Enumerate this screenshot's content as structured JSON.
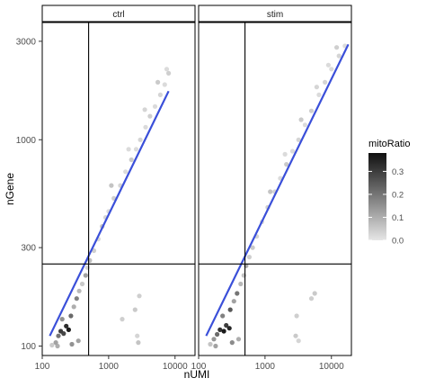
{
  "chart_data": {
    "type": "scatter",
    "facets": [
      "ctrl",
      "stim"
    ],
    "xlabel": "nUMI",
    "ylabel": "nGene",
    "x_scale": "log10",
    "y_scale": "log10",
    "xlim": [
      100,
      20000
    ],
    "ylim": [
      90,
      3700
    ],
    "x_ticks": [
      100,
      1000,
      10000
    ],
    "x_tick_labels": [
      "100",
      "1000",
      "10000"
    ],
    "y_ticks": [
      100,
      300,
      1000,
      3000
    ],
    "y_tick_labels": [
      "100",
      "300",
      "1000",
      "3000"
    ],
    "grid": false,
    "reference_lines": {
      "x": 500,
      "y": 250
    },
    "color_by": "mitoRatio",
    "legend": {
      "title": "mitoRatio",
      "position": "right",
      "range": [
        0.0,
        0.38
      ],
      "ticks": [
        0.0,
        0.1,
        0.2,
        0.3
      ],
      "tick_labels": [
        "0.0",
        "0.1",
        "0.2",
        "0.3"
      ],
      "low_color": "#e6e6e6",
      "high_color": "#101010"
    },
    "series": [
      {
        "facet": "ctrl",
        "fit_line": {
          "x": [
            130,
            8000
          ],
          "y": [
            112,
            1720
          ]
        },
        "points": [
          {
            "x": 140,
            "y": 101,
            "mito": 0.05
          },
          {
            "x": 160,
            "y": 104,
            "mito": 0.12
          },
          {
            "x": 175,
            "y": 112,
            "mito": 0.2
          },
          {
            "x": 190,
            "y": 118,
            "mito": 0.3
          },
          {
            "x": 210,
            "y": 115,
            "mito": 0.28
          },
          {
            "x": 230,
            "y": 125,
            "mito": 0.33
          },
          {
            "x": 250,
            "y": 120,
            "mito": 0.36
          },
          {
            "x": 200,
            "y": 135,
            "mito": 0.15
          },
          {
            "x": 270,
            "y": 140,
            "mito": 0.22
          },
          {
            "x": 300,
            "y": 155,
            "mito": 0.1
          },
          {
            "x": 330,
            "y": 170,
            "mito": 0.18
          },
          {
            "x": 360,
            "y": 185,
            "mito": 0.08
          },
          {
            "x": 400,
            "y": 200,
            "mito": 0.05
          },
          {
            "x": 450,
            "y": 220,
            "mito": 0.12
          },
          {
            "x": 480,
            "y": 240,
            "mito": 0.03
          },
          {
            "x": 520,
            "y": 260,
            "mito": 0.07
          },
          {
            "x": 600,
            "y": 290,
            "mito": 0.04
          },
          {
            "x": 700,
            "y": 330,
            "mito": 0.02
          },
          {
            "x": 800,
            "y": 380,
            "mito": 0.06
          },
          {
            "x": 900,
            "y": 420,
            "mito": 0.03
          },
          {
            "x": 1000,
            "y": 450,
            "mito": 0.02
          },
          {
            "x": 1200,
            "y": 520,
            "mito": 0.04
          },
          {
            "x": 1500,
            "y": 600,
            "mito": 0.03
          },
          {
            "x": 1800,
            "y": 700,
            "mito": 0.02
          },
          {
            "x": 2200,
            "y": 800,
            "mito": 0.05
          },
          {
            "x": 2600,
            "y": 900,
            "mito": 0.02
          },
          {
            "x": 3000,
            "y": 1000,
            "mito": 0.03
          },
          {
            "x": 3600,
            "y": 1150,
            "mito": 0.02
          },
          {
            "x": 4200,
            "y": 1300,
            "mito": 0.04
          },
          {
            "x": 5000,
            "y": 1450,
            "mito": 0.02
          },
          {
            "x": 6000,
            "y": 1650,
            "mito": 0.03
          },
          {
            "x": 7000,
            "y": 1850,
            "mito": 0.02
          },
          {
            "x": 8000,
            "y": 2100,
            "mito": 0.04
          },
          {
            "x": 7500,
            "y": 2200,
            "mito": 0.02
          },
          {
            "x": 5500,
            "y": 1900,
            "mito": 0.05
          },
          {
            "x": 3500,
            "y": 1400,
            "mito": 0.03
          },
          {
            "x": 2000,
            "y": 900,
            "mito": 0.02
          },
          {
            "x": 1100,
            "y": 600,
            "mito": 0.06
          },
          {
            "x": 2500,
            "y": 150,
            "mito": 0.05
          },
          {
            "x": 2900,
            "y": 175,
            "mito": 0.04
          },
          {
            "x": 2700,
            "y": 112,
            "mito": 0.03
          },
          {
            "x": 2800,
            "y": 104,
            "mito": 0.06
          },
          {
            "x": 1600,
            "y": 135,
            "mito": 0.04
          },
          {
            "x": 170,
            "y": 100,
            "mito": 0.1
          },
          {
            "x": 280,
            "y": 102,
            "mito": 0.15
          },
          {
            "x": 350,
            "y": 106,
            "mito": 0.12
          }
        ]
      },
      {
        "facet": "stim",
        "fit_line": {
          "x": [
            130,
            18000
          ],
          "y": [
            112,
            2900
          ]
        },
        "points": [
          {
            "x": 150,
            "y": 102,
            "mito": 0.06
          },
          {
            "x": 170,
            "y": 108,
            "mito": 0.14
          },
          {
            "x": 190,
            "y": 114,
            "mito": 0.22
          },
          {
            "x": 210,
            "y": 120,
            "mito": 0.32
          },
          {
            "x": 240,
            "y": 118,
            "mito": 0.36
          },
          {
            "x": 260,
            "y": 126,
            "mito": 0.3
          },
          {
            "x": 290,
            "y": 122,
            "mito": 0.34
          },
          {
            "x": 230,
            "y": 140,
            "mito": 0.18
          },
          {
            "x": 300,
            "y": 150,
            "mito": 0.25
          },
          {
            "x": 340,
            "y": 165,
            "mito": 0.12
          },
          {
            "x": 380,
            "y": 180,
            "mito": 0.2
          },
          {
            "x": 430,
            "y": 200,
            "mito": 0.08
          },
          {
            "x": 480,
            "y": 220,
            "mito": 0.06
          },
          {
            "x": 520,
            "y": 245,
            "mito": 0.1
          },
          {
            "x": 580,
            "y": 270,
            "mito": 0.04
          },
          {
            "x": 650,
            "y": 300,
            "mito": 0.05
          },
          {
            "x": 750,
            "y": 340,
            "mito": 0.03
          },
          {
            "x": 900,
            "y": 400,
            "mito": 0.02
          },
          {
            "x": 1100,
            "y": 470,
            "mito": 0.04
          },
          {
            "x": 1400,
            "y": 560,
            "mito": 0.03
          },
          {
            "x": 1700,
            "y": 650,
            "mito": 0.02
          },
          {
            "x": 2100,
            "y": 760,
            "mito": 0.05
          },
          {
            "x": 2600,
            "y": 880,
            "mito": 0.02
          },
          {
            "x": 3200,
            "y": 1000,
            "mito": 0.03
          },
          {
            "x": 4000,
            "y": 1180,
            "mito": 0.02
          },
          {
            "x": 5000,
            "y": 1380,
            "mito": 0.04
          },
          {
            "x": 6500,
            "y": 1650,
            "mito": 0.02
          },
          {
            "x": 8000,
            "y": 1900,
            "mito": 0.03
          },
          {
            "x": 10000,
            "y": 2200,
            "mito": 0.02
          },
          {
            "x": 13000,
            "y": 2550,
            "mito": 0.03
          },
          {
            "x": 16000,
            "y": 2850,
            "mito": 0.02
          },
          {
            "x": 12000,
            "y": 2800,
            "mito": 0.04
          },
          {
            "x": 9000,
            "y": 2300,
            "mito": 0.02
          },
          {
            "x": 6000,
            "y": 1800,
            "mito": 0.03
          },
          {
            "x": 3500,
            "y": 1250,
            "mito": 0.05
          },
          {
            "x": 2000,
            "y": 850,
            "mito": 0.02
          },
          {
            "x": 1200,
            "y": 560,
            "mito": 0.06
          },
          {
            "x": 3000,
            "y": 140,
            "mito": 0.04
          },
          {
            "x": 2900,
            "y": 112,
            "mito": 0.05
          },
          {
            "x": 3200,
            "y": 106,
            "mito": 0.03
          },
          {
            "x": 5000,
            "y": 170,
            "mito": 0.04
          },
          {
            "x": 5600,
            "y": 180,
            "mito": 0.05
          },
          {
            "x": 180,
            "y": 100,
            "mito": 0.12
          },
          {
            "x": 320,
            "y": 104,
            "mito": 0.16
          },
          {
            "x": 400,
            "y": 108,
            "mito": 0.1
          }
        ]
      }
    ]
  }
}
